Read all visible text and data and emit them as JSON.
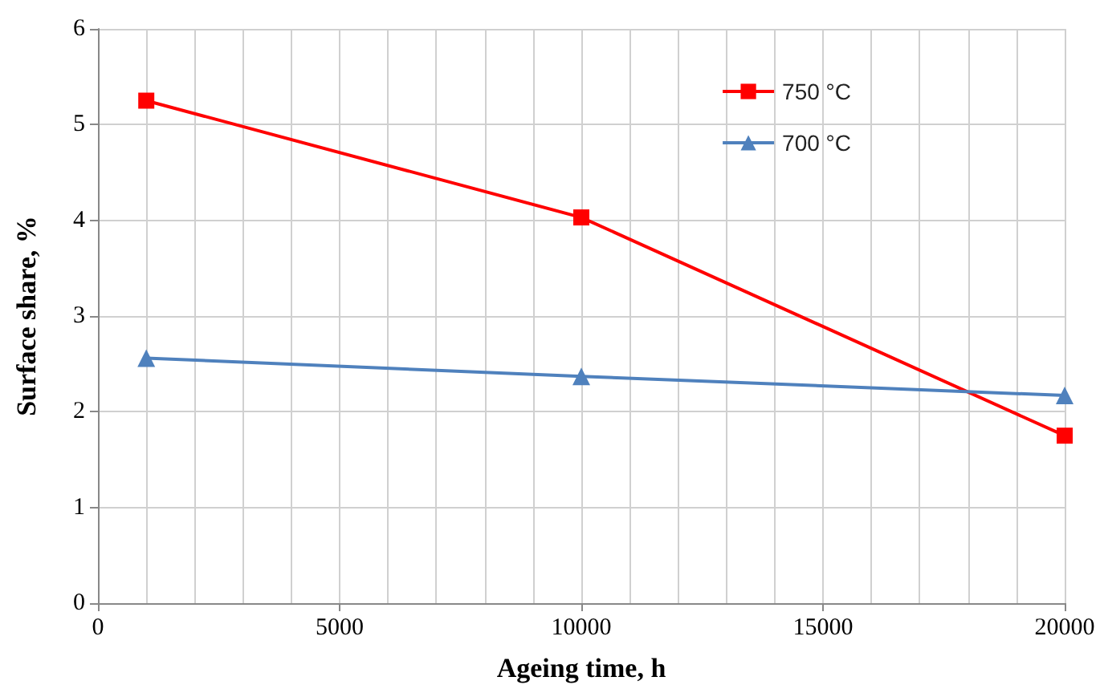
{
  "chart_data": {
    "type": "line",
    "xlabel": "Ageing time, h",
    "ylabel": "Surface share, %",
    "x": [
      1000,
      10000,
      20000
    ],
    "series": [
      {
        "name": "750 °C",
        "color": "#ff0000",
        "values": [
          5.25,
          4.03,
          1.75
        ],
        "marker": "square"
      },
      {
        "name": "700 °C",
        "color": "#4f81bd",
        "values": [
          2.56,
          2.37,
          2.17
        ],
        "marker": "triangle"
      }
    ],
    "xlim": [
      0,
      20000
    ],
    "xticks": [
      0,
      5000,
      10000,
      15000,
      20000
    ],
    "ylim": [
      0,
      6
    ],
    "yticks": [
      0,
      1,
      2,
      3,
      4,
      5,
      6
    ],
    "grid": true,
    "legend": "top right",
    "line_style": "solid"
  }
}
